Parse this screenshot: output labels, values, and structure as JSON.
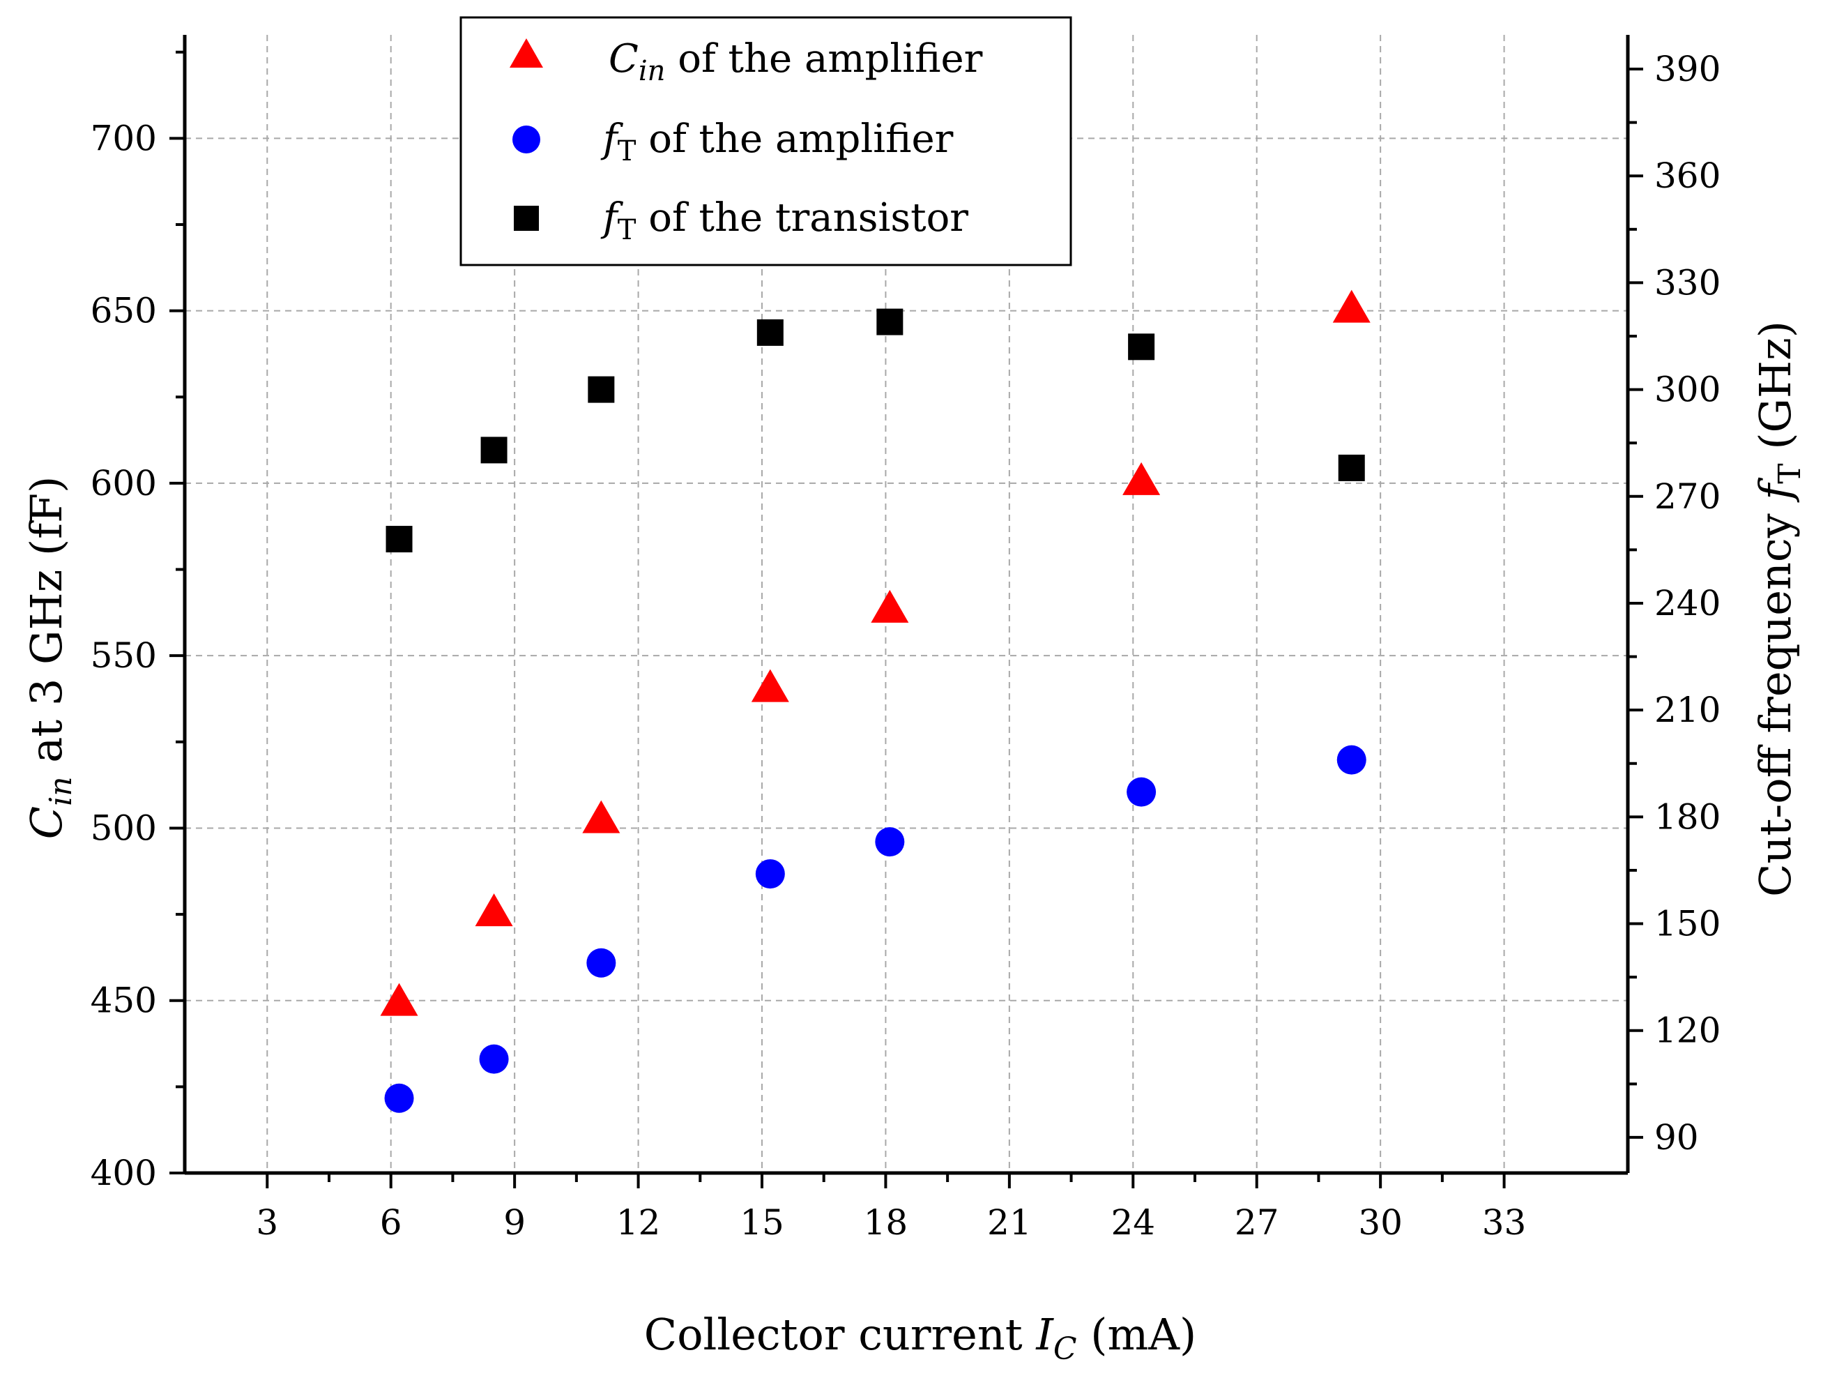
{
  "chart_data": {
    "type": "scatter",
    "x_label": {
      "pre": "Collector current ",
      "var": "I",
      "sub": "C",
      "post": " (mA)"
    },
    "y_left_label": {
      "var": "C",
      "sub": "in",
      "post": " at 3 GHz (fF)"
    },
    "y_right_label": {
      "pre": "Cut-off frequency ",
      "var": "f",
      "sub": "T",
      "post": " (GHz)"
    },
    "x_range": [
      1,
      36
    ],
    "y_left_range": [
      400,
      730
    ],
    "y_right_range": [
      80,
      399.6
    ],
    "x_ticks": [
      3,
      6,
      9,
      12,
      15,
      18,
      21,
      24,
      27,
      30,
      33
    ],
    "y_left_ticks": [
      400,
      450,
      500,
      550,
      600,
      650,
      700
    ],
    "y_right_ticks": [
      90,
      120,
      150,
      180,
      210,
      240,
      270,
      300,
      330,
      360,
      390
    ],
    "grid": "dashed",
    "legend_position": "top-center",
    "series": [
      {
        "name": "Cin of the amplifier",
        "legend": {
          "var": "C",
          "sub": "in",
          "post": " of the amplifier"
        },
        "marker": "triangle",
        "color": "#ff0000",
        "axis": "left",
        "x": [
          6.2,
          8.5,
          11.1,
          15.2,
          18.1,
          24.2,
          29.3
        ],
        "y": [
          449,
          475,
          502,
          540,
          563,
          600,
          650
        ]
      },
      {
        "name": "fT of the amplifier",
        "legend": {
          "var": "f",
          "sub": "T",
          "post": " of the amplifier"
        },
        "marker": "circle",
        "color": "#0000ff",
        "axis": "right",
        "x": [
          6.2,
          8.5,
          11.1,
          15.2,
          18.1,
          24.2,
          29.3
        ],
        "y": [
          101,
          112,
          139,
          164,
          173,
          187,
          196
        ]
      },
      {
        "name": "fT of the transistor",
        "legend": {
          "var": "f",
          "sub": "T",
          "post": " of the transistor"
        },
        "marker": "square",
        "color": "#000000",
        "axis": "right",
        "x": [
          6.2,
          8.5,
          11.1,
          15.2,
          18.1,
          24.2,
          29.3
        ],
        "y": [
          258,
          283,
          300,
          316,
          319,
          312,
          278
        ]
      }
    ]
  }
}
